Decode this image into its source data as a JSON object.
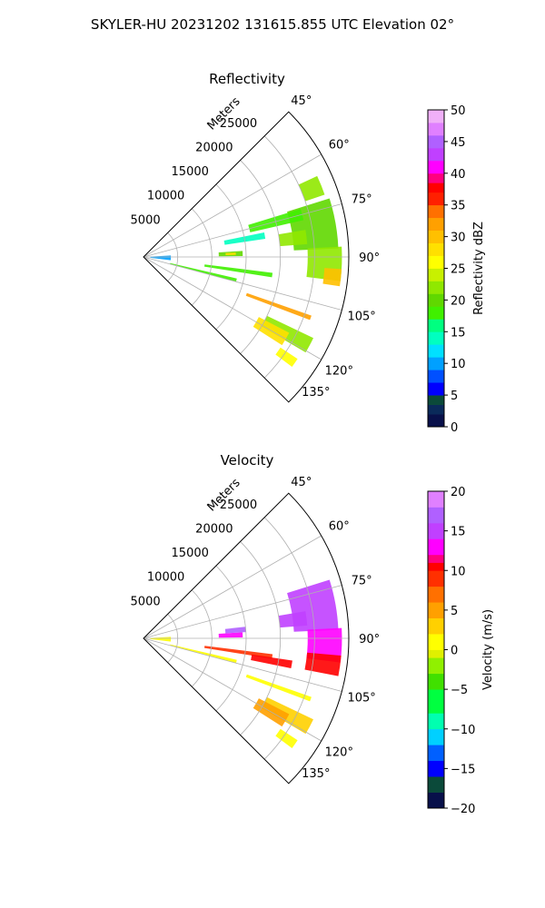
{
  "suptitle": "SKYLER-HU  20231202  131615.855 UTC Elevation 02°",
  "colors": {
    "grid": "#b0b0b0",
    "axes": "#000000"
  },
  "chart_data": [
    {
      "type": "heatmap",
      "subtype": "polar-sector",
      "title": "Reflectivity",
      "range_label": "Meters",
      "range_ticks": [
        "5000",
        "10000",
        "15000",
        "20000",
        "25000"
      ],
      "range_values": [
        5000,
        10000,
        15000,
        20000,
        25000
      ],
      "rmax": 30000,
      "azimuth_ticks": [
        "45°",
        "60°",
        "75°",
        "90°",
        "105°",
        "120°",
        "135°"
      ],
      "azimuth_values": [
        45,
        60,
        75,
        90,
        105,
        120,
        135
      ],
      "azimuth_range": [
        45,
        135
      ],
      "grid": true,
      "colorbar": {
        "label": "Reflectivity dBZ",
        "range": [
          0,
          50
        ],
        "ticks": [
          "0",
          "5",
          "10",
          "15",
          "20",
          "25",
          "30",
          "35",
          "40",
          "45",
          "50"
        ],
        "tick_values": [
          0,
          5,
          10,
          15,
          20,
          25,
          30,
          35,
          40,
          45,
          50
        ],
        "stops": [
          [
            0,
            "#08104a"
          ],
          [
            2,
            "#0a2a5a"
          ],
          [
            3.5,
            "#0b4a3a"
          ],
          [
            5,
            "#0000ff"
          ],
          [
            7,
            "#0050ff"
          ],
          [
            9,
            "#00a0ff"
          ],
          [
            11,
            "#00e0ff"
          ],
          [
            13,
            "#00ffc0"
          ],
          [
            15,
            "#00ff80"
          ],
          [
            17,
            "#40f000"
          ],
          [
            19,
            "#60d800"
          ],
          [
            21,
            "#90e800"
          ],
          [
            23,
            "#c8f000"
          ],
          [
            25,
            "#ffff00"
          ],
          [
            27,
            "#ffe000"
          ],
          [
            29,
            "#ffc000"
          ],
          [
            31,
            "#ffa000"
          ],
          [
            33,
            "#ff7000"
          ],
          [
            35,
            "#ff2000"
          ],
          [
            37,
            "#ff0000"
          ],
          [
            38.5,
            "#ff0080"
          ],
          [
            40,
            "#ff00ff"
          ],
          [
            42,
            "#c040ff"
          ],
          [
            44,
            "#b060ff"
          ],
          [
            46,
            "#e080ff"
          ],
          [
            48,
            "#f0b0f8"
          ],
          [
            50,
            "#fff0ff"
          ]
        ]
      },
      "echo_cells": [
        {
          "az": 80,
          "r1": 22000,
          "r2": 28500,
          "daz": 15,
          "value": 20
        },
        {
          "az": 92,
          "r1": 24000,
          "r2": 29000,
          "daz": 10,
          "value": 22
        },
        {
          "az": 68,
          "r1": 25000,
          "r2": 28000,
          "daz": 6,
          "value": 22
        },
        {
          "az": 96,
          "r1": 26500,
          "r2": 29000,
          "daz": 5,
          "value": 29
        },
        {
          "az": 83,
          "r1": 20000,
          "r2": 24000,
          "daz": 5,
          "value": 21
        },
        {
          "az": 88,
          "r1": 11000,
          "r2": 14500,
          "daz": 3,
          "value": 20
        },
        {
          "az": 88,
          "r1": 12000,
          "r2": 13500,
          "daz": 1.5,
          "value": 28
        },
        {
          "az": 98,
          "r1": 9000,
          "r2": 19000,
          "daz": 2,
          "value": 18
        },
        {
          "az": 104,
          "r1": 4000,
          "r2": 14000,
          "daz": 2,
          "value": 18
        },
        {
          "az": 110,
          "r1": 16000,
          "r2": 26000,
          "daz": 1.5,
          "value": 32
        },
        {
          "az": 118,
          "r1": 20000,
          "r2": 27500,
          "daz": 5,
          "value": 22
        },
        {
          "az": 120,
          "r1": 19000,
          "r2": 24000,
          "daz": 5,
          "value": 27
        },
        {
          "az": 75,
          "r1": 16000,
          "r2": 24000,
          "daz": 4,
          "value": 18
        },
        {
          "az": 80,
          "r1": 12000,
          "r2": 18000,
          "daz": 3,
          "value": 13
        },
        {
          "az": 92,
          "r1": 1000,
          "r2": 4000,
          "daz": 10,
          "value": 10
        },
        {
          "az": 125,
          "r1": 24000,
          "r2": 27000,
          "daz": 3,
          "value": 25
        }
      ]
    },
    {
      "type": "heatmap",
      "subtype": "polar-sector",
      "title": "Velocity",
      "range_label": "Meters",
      "range_ticks": [
        "5000",
        "10000",
        "15000",
        "20000",
        "25000"
      ],
      "range_values": [
        5000,
        10000,
        15000,
        20000,
        25000
      ],
      "rmax": 30000,
      "azimuth_ticks": [
        "45°",
        "60°",
        "75°",
        "90°",
        "105°",
        "120°",
        "135°"
      ],
      "azimuth_values": [
        45,
        60,
        75,
        90,
        105,
        120,
        135
      ],
      "azimuth_range": [
        45,
        135
      ],
      "grid": true,
      "colorbar": {
        "label": "Velocity (m/s)",
        "range": [
          -20,
          20
        ],
        "ticks": [
          "−20",
          "−15",
          "−10",
          "−5",
          "0",
          "5",
          "10",
          "15",
          "20"
        ],
        "tick_values": [
          -20,
          -15,
          -10,
          -5,
          0,
          5,
          10,
          15,
          20
        ],
        "stops": [
          [
            -20,
            "#08104a"
          ],
          [
            -18,
            "#0b4a3a"
          ],
          [
            -16,
            "#0000ff"
          ],
          [
            -14,
            "#0060ff"
          ],
          [
            -12,
            "#00d0ff"
          ],
          [
            -10,
            "#00ffb0"
          ],
          [
            -8,
            "#00ff40"
          ],
          [
            -5,
            "#40e000"
          ],
          [
            -3,
            "#90f000"
          ],
          [
            -1,
            "#e0f000"
          ],
          [
            0,
            "#ffff00"
          ],
          [
            2,
            "#ffd000"
          ],
          [
            4,
            "#ffa000"
          ],
          [
            6,
            "#ff7000"
          ],
          [
            8,
            "#ff3000"
          ],
          [
            10,
            "#ff0000"
          ],
          [
            11,
            "#ff0080"
          ],
          [
            12,
            "#ff00ff"
          ],
          [
            14,
            "#c040ff"
          ],
          [
            16,
            "#b060ff"
          ],
          [
            18,
            "#e080ff"
          ],
          [
            20,
            "#fff0ff"
          ]
        ]
      },
      "echo_cells": [
        {
          "az": 80,
          "r1": 22000,
          "r2": 28500,
          "daz": 15,
          "value": 14
        },
        {
          "az": 92,
          "r1": 24000,
          "r2": 29000,
          "daz": 10,
          "value": 12
        },
        {
          "az": 98,
          "r1": 24000,
          "r2": 29000,
          "daz": 6,
          "value": 10
        },
        {
          "az": 83,
          "r1": 20000,
          "r2": 24000,
          "daz": 5,
          "value": 14
        },
        {
          "az": 88,
          "r1": 11000,
          "r2": 14500,
          "daz": 3,
          "value": 12
        },
        {
          "az": 85,
          "r1": 12000,
          "r2": 15000,
          "daz": 3,
          "value": 16
        },
        {
          "az": 98,
          "r1": 9000,
          "r2": 19000,
          "daz": 2,
          "value": 8
        },
        {
          "az": 104,
          "r1": 4000,
          "r2": 14000,
          "daz": 2,
          "value": 1
        },
        {
          "az": 110,
          "r1": 16000,
          "r2": 26000,
          "daz": 1.5,
          "value": 0
        },
        {
          "az": 118,
          "r1": 20000,
          "r2": 27500,
          "daz": 5,
          "value": 3
        },
        {
          "az": 120,
          "r1": 19000,
          "r2": 24000,
          "daz": 5,
          "value": 4
        },
        {
          "az": 100,
          "r1": 16000,
          "r2": 22000,
          "daz": 3,
          "value": 10
        },
        {
          "az": 92,
          "r1": 1000,
          "r2": 4000,
          "daz": 10,
          "value": 0
        },
        {
          "az": 125,
          "r1": 24000,
          "r2": 27000,
          "daz": 3,
          "value": 1
        }
      ]
    }
  ]
}
